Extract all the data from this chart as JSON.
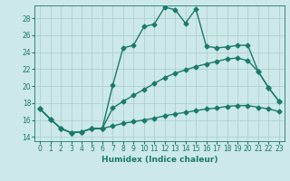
{
  "xlabel": "Humidex (Indice chaleur)",
  "ylabel": "",
  "bg_color": "#cce8e8",
  "line_color": "#1a7a6a",
  "grid_color": "#aacccc",
  "xlim": [
    -0.5,
    23.5
  ],
  "ylim": [
    13.5,
    29.5
  ],
  "x_ticks": [
    0,
    1,
    2,
    3,
    4,
    5,
    6,
    7,
    8,
    9,
    10,
    11,
    12,
    13,
    14,
    15,
    16,
    17,
    18,
    19,
    20,
    21,
    22,
    23
  ],
  "y_ticks": [
    14,
    16,
    18,
    20,
    22,
    24,
    26,
    28
  ],
  "line1_y": [
    17.3,
    16.1,
    15.0,
    14.5,
    14.6,
    15.0,
    15.0,
    20.1,
    24.5,
    24.8,
    27.0,
    27.3,
    29.3,
    29.0,
    27.4,
    29.1,
    24.7,
    24.5,
    24.6,
    24.8,
    24.8,
    21.7,
    19.8,
    18.2
  ],
  "line2_y": [
    17.3,
    16.1,
    15.0,
    14.5,
    14.6,
    15.0,
    15.0,
    17.4,
    18.2,
    18.9,
    19.6,
    20.3,
    21.0,
    21.5,
    21.9,
    22.3,
    22.6,
    22.9,
    23.2,
    23.3,
    23.0,
    21.7,
    19.8,
    18.2
  ],
  "line3_y": [
    17.3,
    16.1,
    15.0,
    14.5,
    14.6,
    15.0,
    15.0,
    15.3,
    15.6,
    15.8,
    16.0,
    16.2,
    16.5,
    16.7,
    16.9,
    17.1,
    17.3,
    17.4,
    17.6,
    17.7,
    17.7,
    17.5,
    17.3,
    17.0
  ],
  "markersize": 2.5,
  "linewidth": 1.0
}
